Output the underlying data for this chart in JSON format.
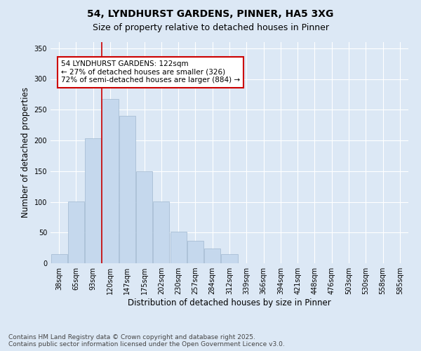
{
  "title1": "54, LYNDHURST GARDENS, PINNER, HA5 3XG",
  "title2": "Size of property relative to detached houses in Pinner",
  "xlabel": "Distribution of detached houses by size in Pinner",
  "ylabel": "Number of detached properties",
  "bar_labels": [
    "38sqm",
    "65sqm",
    "93sqm",
    "120sqm",
    "147sqm",
    "175sqm",
    "202sqm",
    "230sqm",
    "257sqm",
    "284sqm",
    "312sqm",
    "339sqm",
    "366sqm",
    "394sqm",
    "421sqm",
    "448sqm",
    "476sqm",
    "503sqm",
    "530sqm",
    "558sqm",
    "585sqm"
  ],
  "bar_values": [
    15,
    101,
    203,
    268,
    240,
    150,
    101,
    51,
    37,
    24,
    15,
    0,
    0,
    0,
    0,
    0,
    0,
    0,
    0,
    0,
    0
  ],
  "bar_color": "#c5d8ed",
  "bar_edge_color": "#a0b8d0",
  "vline_color": "#cc0000",
  "annotation_text": "54 LYNDHURST GARDENS: 122sqm\n← 27% of detached houses are smaller (326)\n72% of semi-detached houses are larger (884) →",
  "annotation_box_color": "#ffffff",
  "annotation_box_edge": "#cc0000",
  "ylim": [
    0,
    360
  ],
  "yticks": [
    0,
    50,
    100,
    150,
    200,
    250,
    300,
    350
  ],
  "background_color": "#dce8f5",
  "plot_background": "#dce8f5",
  "footer_line1": "Contains HM Land Registry data © Crown copyright and database right 2025.",
  "footer_line2": "Contains public sector information licensed under the Open Government Licence v3.0.",
  "title_fontsize": 10,
  "subtitle_fontsize": 9,
  "axis_label_fontsize": 8.5,
  "tick_fontsize": 7,
  "annotation_fontsize": 7.5,
  "footer_fontsize": 6.5
}
